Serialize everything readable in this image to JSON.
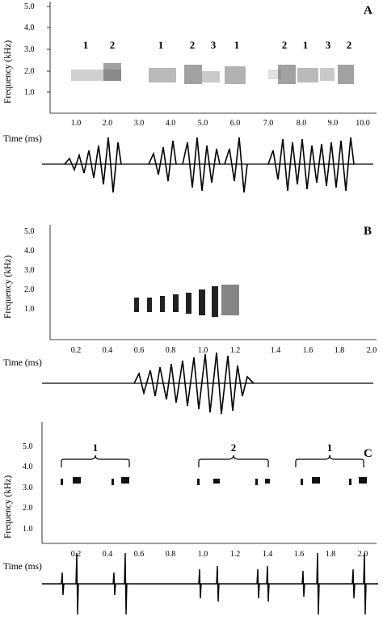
{
  "panels": [
    {
      "letter": "A",
      "ylabel": "Frequency (kHz)",
      "xlabel": "Time (ms)",
      "yticks": [
        "5.0",
        "4.0",
        "3.0",
        "2.0",
        "1.0"
      ],
      "xticks": [
        "1.0",
        "2.0",
        "3.0",
        "4.0",
        "5.0",
        "6.0",
        "7.0",
        "8.0",
        "9.0",
        "10.0"
      ],
      "x_range": [
        0,
        10.5
      ],
      "call_labels": [
        {
          "text": "1",
          "x": 1.4
        },
        {
          "text": "2",
          "x": 2.15
        },
        {
          "text": "1",
          "x": 3.65
        },
        {
          "text": "2",
          "x": 4.75
        },
        {
          "text": "3",
          "x": 5.35
        },
        {
          "text": "1",
          "x": 6.15
        },
        {
          "text": "2",
          "x": 7.6
        },
        {
          "text": "1",
          "x": 8.3
        },
        {
          "text": "3",
          "x": 9.0
        },
        {
          "text": "2",
          "x": 9.6
        }
      ]
    },
    {
      "letter": "B",
      "ylabel": "Frequency (kHz)",
      "xlabel": "Time (ms)",
      "yticks": [
        "5.0",
        "4.0",
        "3.0",
        "2.0",
        "1.0"
      ],
      "xticks": [
        "0.2",
        "0.4",
        "0.6",
        "0.8",
        "1.0",
        "1.2",
        "1.4",
        "1.6",
        "1.8",
        "2.0"
      ],
      "x_range": [
        0,
        2.05
      ],
      "call_labels": []
    },
    {
      "letter": "C",
      "ylabel": "Frequency (kHz)",
      "xlabel": "Time (ms)",
      "yticks": [
        "5.0",
        "4.0",
        "3.0",
        "2.0",
        "1.0"
      ],
      "xticks": [
        "0.2",
        "0.4",
        "0.6",
        "0.8",
        "1.0",
        "1.2",
        "1.4",
        "1.6",
        "1.8",
        "2.0"
      ],
      "x_range": [
        0,
        2.15
      ],
      "call_labels": [
        {
          "text": "1",
          "x": 0.32
        },
        {
          "text": "2",
          "x": 1.19
        },
        {
          "text": "1",
          "x": 1.8
        }
      ]
    }
  ]
}
